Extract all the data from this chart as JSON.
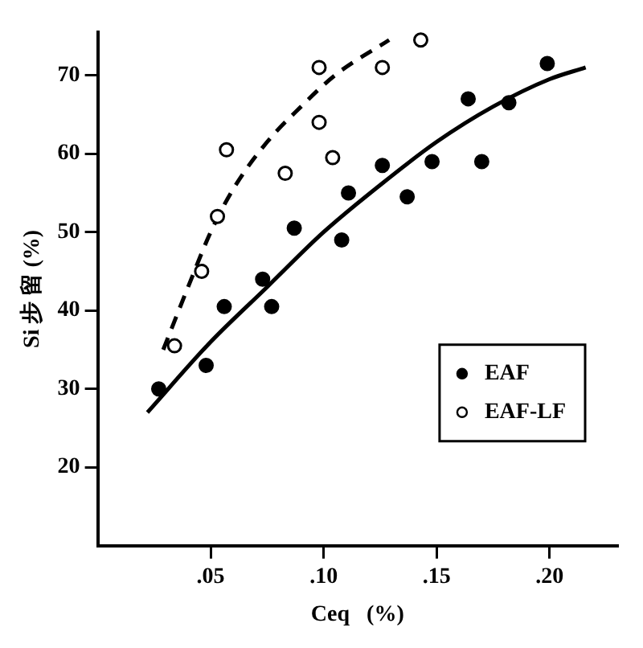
{
  "chart_data": {
    "type": "scatter",
    "xlabel": "Ceq   (%)",
    "ylabel": "Si 步 留 (%)",
    "xlim": [
      0,
      0.23
    ],
    "ylim": [
      10,
      75.5
    ],
    "xticks": [
      {
        "value": 0.05,
        "label": ".05"
      },
      {
        "value": 0.1,
        "label": ".10"
      },
      {
        "value": 0.15,
        "label": ".15"
      },
      {
        "value": 0.2,
        "label": ".20"
      }
    ],
    "yticks": [
      20,
      30,
      40,
      50,
      60,
      70
    ],
    "grid": false,
    "legend": "bottom right",
    "series": [
      {
        "name": "EAF",
        "color": "#000000",
        "marker": "circle",
        "x": [
          0.027,
          0.048,
          0.056,
          0.073,
          0.077,
          0.087,
          0.108,
          0.111,
          0.126,
          0.137,
          0.148,
          0.164,
          0.17,
          0.182,
          0.199
        ],
        "values": [
          30,
          33,
          40.5,
          44,
          40.5,
          50.5,
          49,
          55,
          58.5,
          54.5,
          59,
          67,
          59,
          66.5,
          71.5
        ]
      },
      {
        "name": "EAF-LF",
        "color": "#ffffff",
        "marker": "circle",
        "x": [
          0.034,
          0.046,
          0.053,
          0.057,
          0.083,
          0.098,
          0.104,
          0.098,
          0.126,
          0.143
        ],
        "values": [
          35.5,
          45,
          52,
          60.5,
          57.5,
          64,
          59.5,
          71,
          71,
          74.5
        ]
      },
      {
        "type": "line",
        "color": "#000000",
        "line_style": "solid",
        "marker": "none",
        "x": [
          0.022,
          0.05,
          0.075,
          0.1,
          0.125,
          0.15,
          0.175,
          0.2,
          0.216
        ],
        "values": [
          27,
          36,
          43,
          50,
          56,
          61.5,
          66,
          69.5,
          71
        ]
      },
      {
        "type": "line",
        "color": "#000000",
        "line_style": "dashed",
        "marker": "none",
        "x": [
          0.029,
          0.04,
          0.05,
          0.06,
          0.075,
          0.09,
          0.105,
          0.129
        ],
        "values": [
          35,
          43,
          50,
          55.5,
          61.5,
          66,
          70,
          74.5
        ]
      }
    ]
  }
}
